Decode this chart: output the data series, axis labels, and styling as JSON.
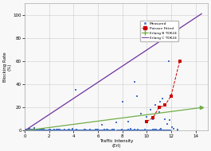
{
  "title": "",
  "xlabel": "Traffic Intensity\n(Erl)",
  "ylabel": "Blocking Rate\n(%)",
  "xlim": [
    0,
    15
  ],
  "ylim": [
    0,
    110
  ],
  "xticks": [
    0,
    2,
    4,
    6,
    8,
    10,
    12,
    14
  ],
  "yticks": [
    0,
    20,
    40,
    60,
    80,
    100
  ],
  "scatter_color": "#4472C4",
  "poisson_fit_color": "#CC0000",
  "poisson_fit_points": [
    [
      10.0,
      8
    ],
    [
      10.5,
      11
    ],
    [
      11.0,
      20
    ],
    [
      11.5,
      22
    ],
    [
      12.0,
      30
    ],
    [
      12.7,
      60
    ]
  ],
  "erlang_b_color": "#70AD47",
  "erlang_b_points": [
    [
      0,
      0
    ],
    [
      14.5,
      20
    ]
  ],
  "erlang_c_color": "#7030A0",
  "erlang_c_points": [
    [
      0,
      0
    ],
    [
      14.5,
      101
    ]
  ],
  "legend_labels": [
    "Measured",
    "Poisson Fitted",
    "Erlang B TDK24",
    "Erlang C TDK24"
  ],
  "legend_colors": [
    "#4472C4",
    "#CC0000",
    "#70AD47",
    "#7030A0"
  ],
  "bg_color": "#f8f8f8",
  "grid_color": "#cccccc",
  "scatter_main_seed": 42,
  "scatter_extra_seed": 7
}
